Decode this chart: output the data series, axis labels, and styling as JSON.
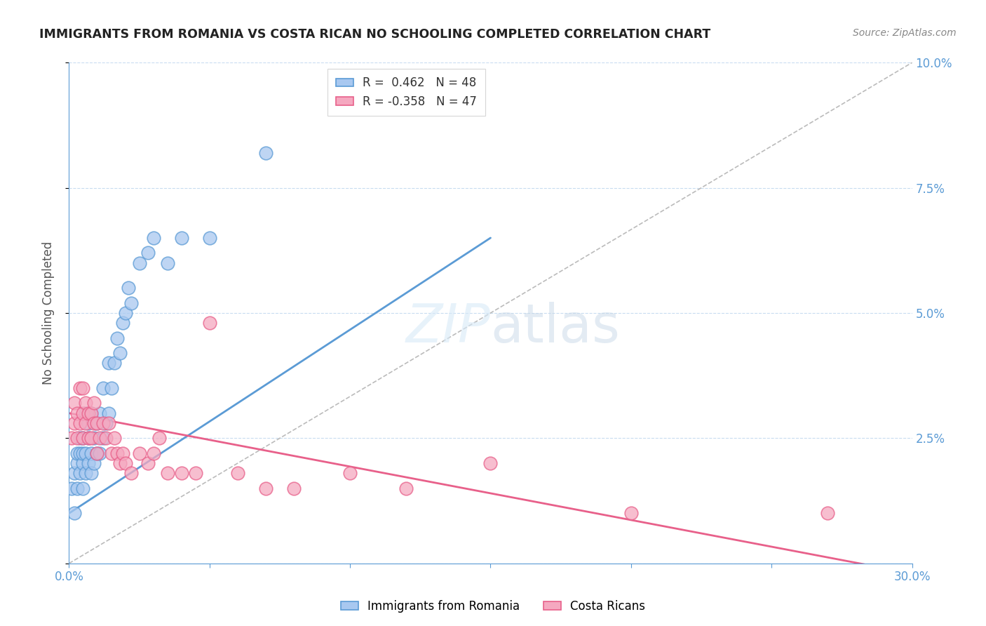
{
  "title": "IMMIGRANTS FROM ROMANIA VS COSTA RICAN NO SCHOOLING COMPLETED CORRELATION CHART",
  "source": "Source: ZipAtlas.com",
  "ylabel": "No Schooling Completed",
  "xlim": [
    0.0,
    0.3
  ],
  "ylim": [
    0.0,
    0.1
  ],
  "color_blue": "#A8C8F0",
  "color_pink": "#F5A8C0",
  "color_blue_dark": "#5B9BD5",
  "color_pink_dark": "#E8608A",
  "axis_color": "#5B9BD5",
  "grid_color": "#C8DCF0",
  "background_color": "#FFFFFF",
  "blue_x": [
    0.001,
    0.002,
    0.002,
    0.003,
    0.003,
    0.003,
    0.004,
    0.004,
    0.004,
    0.005,
    0.005,
    0.005,
    0.005,
    0.006,
    0.006,
    0.006,
    0.007,
    0.007,
    0.007,
    0.008,
    0.008,
    0.008,
    0.009,
    0.009,
    0.01,
    0.01,
    0.011,
    0.011,
    0.012,
    0.012,
    0.013,
    0.014,
    0.014,
    0.015,
    0.016,
    0.017,
    0.018,
    0.019,
    0.02,
    0.021,
    0.022,
    0.025,
    0.028,
    0.03,
    0.035,
    0.04,
    0.05,
    0.07
  ],
  "blue_y": [
    0.015,
    0.01,
    0.018,
    0.015,
    0.02,
    0.022,
    0.018,
    0.022,
    0.025,
    0.015,
    0.02,
    0.022,
    0.025,
    0.018,
    0.022,
    0.03,
    0.02,
    0.025,
    0.028,
    0.018,
    0.022,
    0.03,
    0.02,
    0.025,
    0.022,
    0.028,
    0.022,
    0.03,
    0.025,
    0.035,
    0.028,
    0.03,
    0.04,
    0.035,
    0.04,
    0.045,
    0.042,
    0.048,
    0.05,
    0.055,
    0.052,
    0.06,
    0.062,
    0.065,
    0.06,
    0.065,
    0.065,
    0.082
  ],
  "pink_x": [
    0.001,
    0.002,
    0.002,
    0.003,
    0.003,
    0.004,
    0.004,
    0.005,
    0.005,
    0.005,
    0.006,
    0.006,
    0.007,
    0.007,
    0.008,
    0.008,
    0.009,
    0.009,
    0.01,
    0.01,
    0.011,
    0.012,
    0.013,
    0.014,
    0.015,
    0.016,
    0.017,
    0.018,
    0.019,
    0.02,
    0.022,
    0.025,
    0.028,
    0.03,
    0.032,
    0.035,
    0.04,
    0.045,
    0.05,
    0.06,
    0.07,
    0.08,
    0.1,
    0.12,
    0.15,
    0.2,
    0.27
  ],
  "pink_y": [
    0.025,
    0.028,
    0.032,
    0.025,
    0.03,
    0.028,
    0.035,
    0.025,
    0.03,
    0.035,
    0.028,
    0.032,
    0.025,
    0.03,
    0.025,
    0.03,
    0.028,
    0.032,
    0.022,
    0.028,
    0.025,
    0.028,
    0.025,
    0.028,
    0.022,
    0.025,
    0.022,
    0.02,
    0.022,
    0.02,
    0.018,
    0.022,
    0.02,
    0.022,
    0.025,
    0.018,
    0.018,
    0.018,
    0.048,
    0.018,
    0.015,
    0.015,
    0.018,
    0.015,
    0.02,
    0.01,
    0.01
  ],
  "blue_line_x": [
    0.0,
    0.15
  ],
  "blue_line_y": [
    0.01,
    0.065
  ],
  "pink_line_x": [
    0.0,
    0.3
  ],
  "pink_line_y": [
    0.03,
    -0.002
  ],
  "diag_line_x": [
    0.0,
    0.3
  ],
  "diag_line_y": [
    0.0,
    0.1
  ]
}
